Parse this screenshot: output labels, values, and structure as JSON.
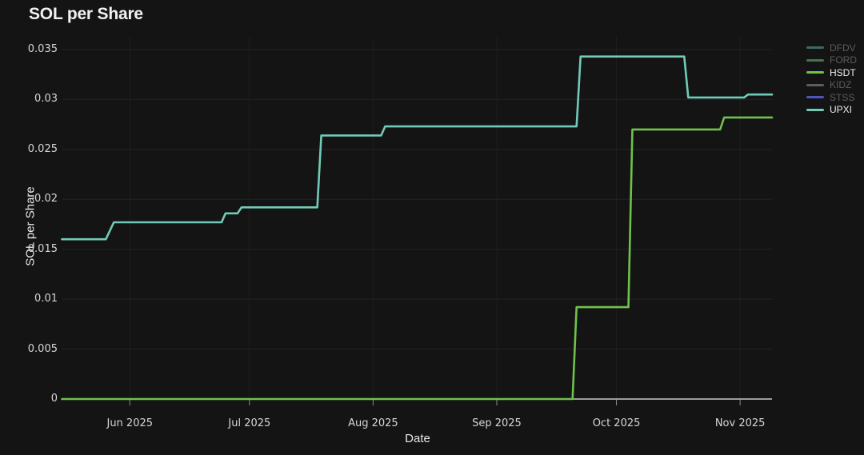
{
  "title": "SOL per Share",
  "colors": {
    "background": "#141414",
    "grid_horizontal": "#232323",
    "grid_vertical": "#1e1e1e",
    "axis_line": "#c9c9c9",
    "tick_mark": "#8a8a8a",
    "tick_text": "#d6d6d6",
    "title_text": "#f1f1f1",
    "legend_active_text": "#ededed",
    "legend_dim_text": "#5c5c5c"
  },
  "chart_data": {
    "type": "line",
    "title": "SOL per Share",
    "xlabel": "Date",
    "ylabel": "SOL per Share",
    "ylim": [
      0,
      0.035
    ],
    "grid": true,
    "legend_position": "right",
    "x_domain": [
      "2025-05-15",
      "2025-11-09"
    ],
    "yticks": [
      0,
      0.005,
      0.01,
      0.015,
      0.02,
      0.025,
      0.03,
      0.035
    ],
    "ytick_labels": [
      "0",
      "0.005",
      "0.01",
      "0.015",
      "0.02",
      "0.025",
      "0.03",
      "0.035"
    ],
    "xticks": [
      "2025-06-01",
      "2025-07-01",
      "2025-08-01",
      "2025-09-01",
      "2025-10-01",
      "2025-11-01"
    ],
    "xtick_labels": [
      "Jun 2025",
      "Jul 2025",
      "Aug 2025",
      "Sep 2025",
      "Oct 2025",
      "Nov 2025"
    ],
    "series": [
      {
        "name": "DFDV",
        "color": "#3c6b5e",
        "active": false,
        "points": []
      },
      {
        "name": "FORD",
        "color": "#4b7153",
        "active": false,
        "points": []
      },
      {
        "name": "HSDT",
        "color": "#6fc24a",
        "active": true,
        "points": [
          [
            "2025-05-15",
            0
          ],
          [
            "2025-09-20",
            0
          ],
          [
            "2025-09-21",
            0.0092
          ],
          [
            "2025-10-04",
            0.0092
          ],
          [
            "2025-10-05",
            0.027
          ],
          [
            "2025-10-27",
            0.027
          ],
          [
            "2025-10-28",
            0.0282
          ],
          [
            "2025-11-09",
            0.0282
          ]
        ]
      },
      {
        "name": "KIDZ",
        "color": "#595f61",
        "active": false,
        "points": []
      },
      {
        "name": "STSS",
        "color": "#4d55b8",
        "active": false,
        "points": []
      },
      {
        "name": "UPXI",
        "color": "#71cbb7",
        "active": true,
        "points": [
          [
            "2025-05-15",
            0.016
          ],
          [
            "2025-05-26",
            0.016
          ],
          [
            "2025-05-28",
            0.0177
          ],
          [
            "2025-06-24",
            0.0177
          ],
          [
            "2025-06-25",
            0.0186
          ],
          [
            "2025-06-28",
            0.0186
          ],
          [
            "2025-06-29",
            0.0192
          ],
          [
            "2025-07-18",
            0.0192
          ],
          [
            "2025-07-19",
            0.0264
          ],
          [
            "2025-08-03",
            0.0264
          ],
          [
            "2025-08-04",
            0.0273
          ],
          [
            "2025-09-21",
            0.0273
          ],
          [
            "2025-09-22",
            0.0343
          ],
          [
            "2025-10-18",
            0.0343
          ],
          [
            "2025-10-19",
            0.0302
          ],
          [
            "2025-11-02",
            0.0302
          ],
          [
            "2025-11-03",
            0.0305
          ],
          [
            "2025-11-09",
            0.0305
          ]
        ]
      }
    ]
  }
}
